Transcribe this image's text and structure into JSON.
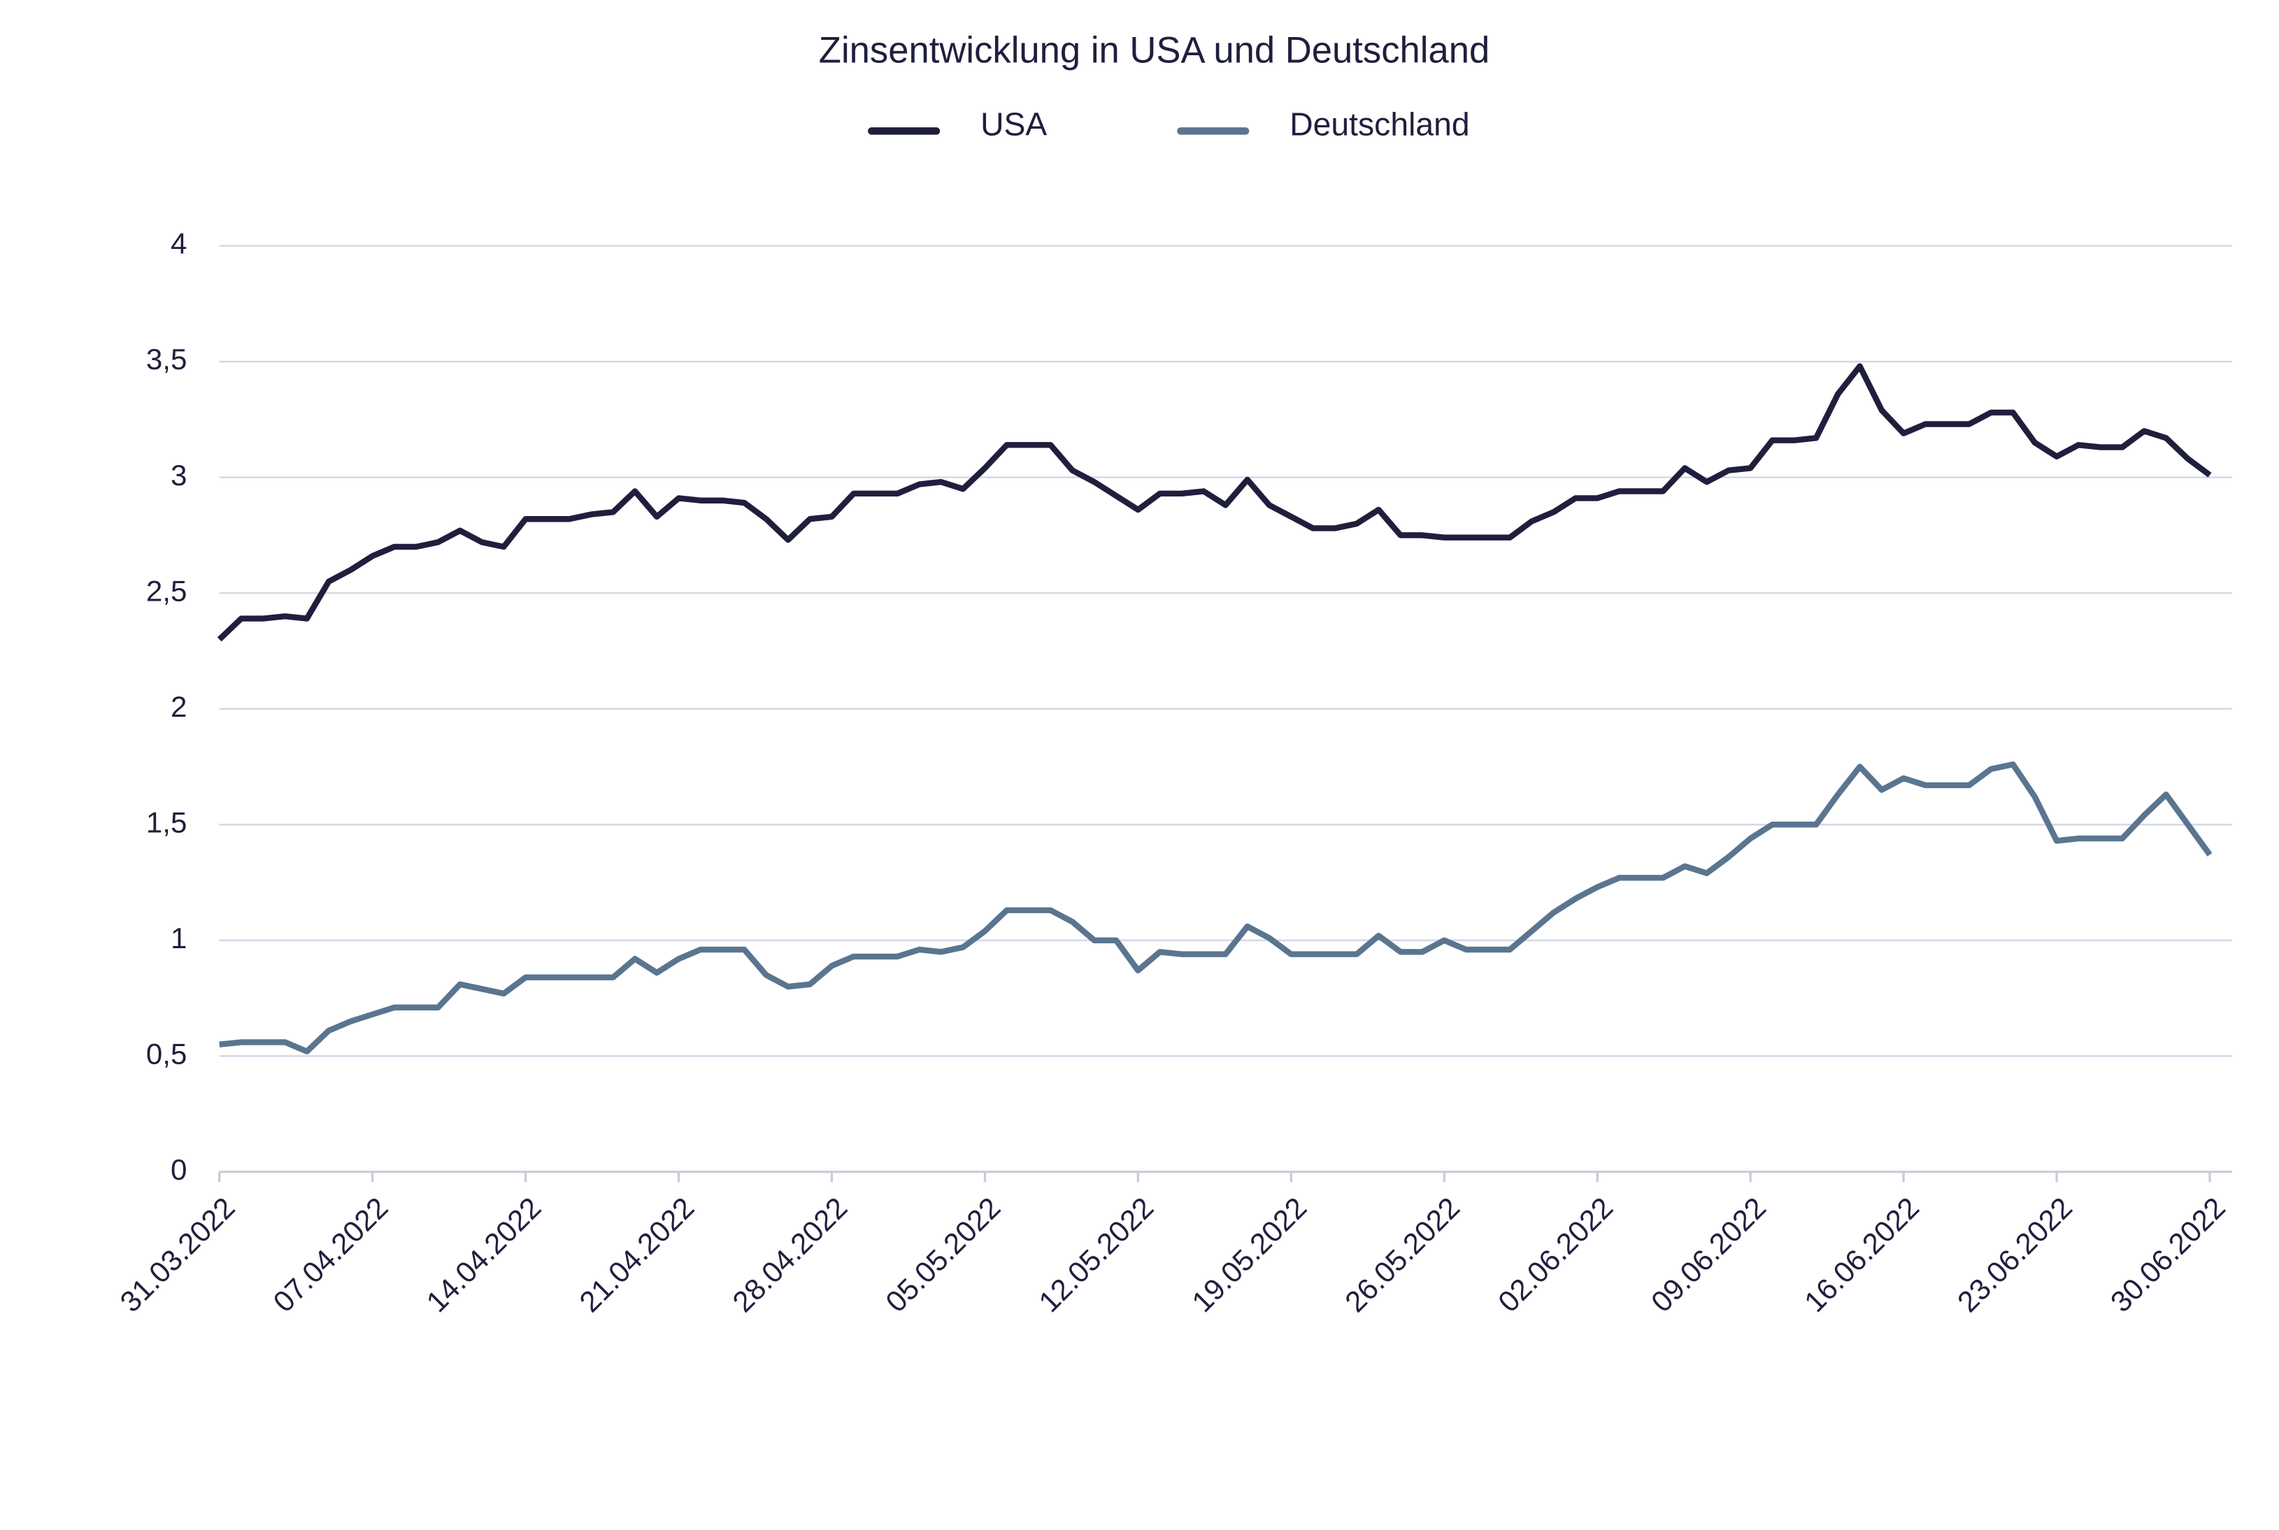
{
  "chart_data": {
    "type": "line",
    "title": "Zinsentwicklung in USA und Deutschland",
    "categories": [
      "31.03.2022",
      null,
      null,
      null,
      null,
      null,
      null,
      "07.04.2022",
      null,
      null,
      null,
      null,
      null,
      null,
      "14.04.2022",
      null,
      null,
      null,
      null,
      null,
      null,
      "21.04.2022",
      null,
      null,
      null,
      null,
      null,
      null,
      "28.04.2022",
      null,
      null,
      null,
      null,
      null,
      null,
      "05.05.2022",
      null,
      null,
      null,
      null,
      null,
      null,
      "12.05.2022",
      null,
      null,
      null,
      null,
      null,
      null,
      "19.05.2022",
      null,
      null,
      null,
      null,
      null,
      null,
      "26.05.2022",
      null,
      null,
      null,
      null,
      null,
      null,
      "02.06.2022",
      null,
      null,
      null,
      null,
      null,
      null,
      "09.06.2022",
      null,
      null,
      null,
      null,
      null,
      null,
      "16.06.2022",
      null,
      null,
      null,
      null,
      null,
      null,
      "23.06.2022",
      null,
      null,
      null,
      null,
      null,
      null,
      "30.06.2022"
    ],
    "series": [
      {
        "name": "USA",
        "color": "#1f1f3d",
        "values": [
          2.3,
          2.39,
          2.39,
          2.4,
          2.39,
          2.55,
          2.6,
          2.66,
          2.7,
          2.7,
          2.72,
          2.77,
          2.72,
          2.7,
          2.82,
          2.82,
          2.82,
          2.84,
          2.85,
          2.94,
          2.83,
          2.91,
          2.9,
          2.9,
          2.89,
          2.82,
          2.73,
          2.82,
          2.83,
          2.93,
          2.93,
          2.93,
          2.97,
          2.98,
          2.95,
          3.04,
          3.14,
          3.14,
          3.14,
          3.03,
          2.98,
          2.92,
          2.86,
          2.93,
          2.93,
          2.94,
          2.88,
          2.99,
          2.88,
          2.83,
          2.78,
          2.78,
          2.8,
          2.86,
          2.75,
          2.75,
          2.74,
          2.74,
          2.74,
          2.74,
          2.81,
          2.85,
          2.91,
          2.91,
          2.94,
          2.94,
          2.94,
          3.04,
          2.98,
          3.03,
          3.04,
          3.16,
          3.16,
          3.17,
          3.36,
          3.48,
          3.29,
          3.19,
          3.23,
          3.23,
          3.23,
          3.28,
          3.28,
          3.15,
          3.09,
          3.14,
          3.13,
          3.13,
          3.2,
          3.17,
          3.08,
          3.01
        ]
      },
      {
        "name": "Deutschland",
        "color": "#5a7590",
        "values": [
          0.55,
          0.56,
          0.56,
          0.56,
          0.52,
          0.61,
          0.65,
          0.68,
          0.71,
          0.71,
          0.71,
          0.81,
          0.79,
          0.77,
          0.84,
          0.84,
          0.84,
          0.84,
          0.84,
          0.92,
          0.86,
          0.92,
          0.96,
          0.96,
          0.96,
          0.85,
          0.8,
          0.81,
          0.89,
          0.93,
          0.93,
          0.93,
          0.96,
          0.95,
          0.97,
          1.04,
          1.13,
          1.13,
          1.13,
          1.08,
          1.0,
          1.0,
          0.87,
          0.95,
          0.94,
          0.94,
          0.94,
          1.06,
          1.01,
          0.94,
          0.94,
          0.94,
          0.94,
          1.02,
          0.95,
          0.95,
          1.0,
          0.96,
          0.96,
          0.96,
          1.04,
          1.12,
          1.18,
          1.23,
          1.27,
          1.27,
          1.27,
          1.32,
          1.29,
          1.36,
          1.44,
          1.5,
          1.5,
          1.5,
          1.63,
          1.75,
          1.65,
          1.7,
          1.67,
          1.67,
          1.67,
          1.74,
          1.76,
          1.62,
          1.43,
          1.44,
          1.44,
          1.44,
          1.54,
          1.63,
          1.5,
          1.37
        ]
      }
    ],
    "ylim": [
      0,
      4
    ],
    "yticks": [
      0,
      {
        "value": 0.5,
        "label": "0,5"
      },
      1,
      {
        "value": 1.5,
        "label": "1,5"
      },
      2,
      {
        "value": 2.5,
        "label": "2,5"
      },
      3,
      {
        "value": 3.5,
        "label": "3,5"
      },
      4
    ],
    "grid": true,
    "legend": "top"
  }
}
